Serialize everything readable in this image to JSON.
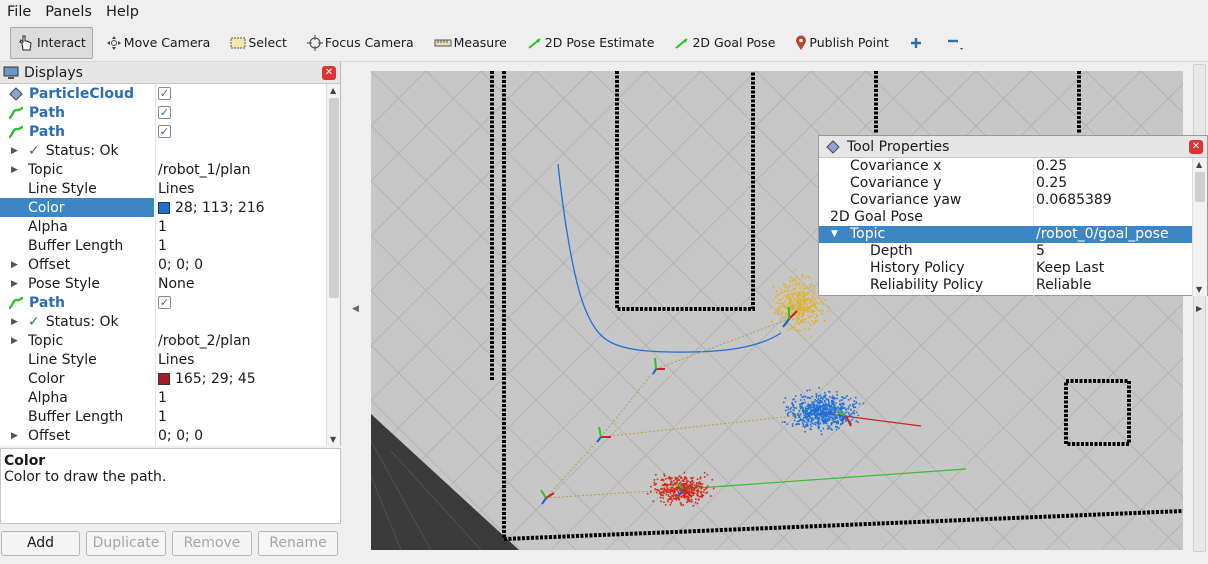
{
  "menu": [
    "File",
    "Panels",
    "Help"
  ],
  "toolbar": {
    "interact": "Interact",
    "move_camera": "Move Camera",
    "select": "Select",
    "focus_camera": "Focus Camera",
    "measure": "Measure",
    "pose_estimate": "2D Pose Estimate",
    "goal_pose": "2D Goal Pose",
    "publish_point": "Publish Point"
  },
  "displays": {
    "title": "Displays",
    "rows": [
      {
        "name": "ParticleCloud",
        "check": "✓"
      },
      {
        "name": "Path",
        "check": "✓"
      },
      {
        "name": "Path",
        "check": "✓"
      },
      {
        "name": "Status: Ok",
        "value": ""
      },
      {
        "name": "Topic",
        "value": "/robot_1/plan"
      },
      {
        "name": "Line Style",
        "value": "Lines"
      },
      {
        "name": "Color",
        "value": "28; 113; 216",
        "swatch": "#1c71d8"
      },
      {
        "name": "Alpha",
        "value": "1"
      },
      {
        "name": "Buffer Length",
        "value": "1"
      },
      {
        "name": "Offset",
        "value": "0; 0; 0"
      },
      {
        "name": "Pose Style",
        "value": "None"
      },
      {
        "name": "Path",
        "check": "✓"
      },
      {
        "name": "Status: Ok",
        "value": ""
      },
      {
        "name": "Topic",
        "value": "/robot_2/plan"
      },
      {
        "name": "Line Style",
        "value": "Lines"
      },
      {
        "name": "Color",
        "value": "165; 29; 45",
        "swatch": "#a51d2d"
      },
      {
        "name": "Alpha",
        "value": "1"
      },
      {
        "name": "Buffer Length",
        "value": "1"
      },
      {
        "name": "Offset",
        "value": "0; 0; 0"
      }
    ]
  },
  "description": {
    "title": "Color",
    "text": "Color to draw the path."
  },
  "buttons": {
    "add": "Add",
    "duplicate": "Duplicate",
    "remove": "Remove",
    "rename": "Rename"
  },
  "tool_properties": {
    "title": "Tool Properties",
    "rows": [
      {
        "name": "Covariance x",
        "value": "0.25"
      },
      {
        "name": "Covariance y",
        "value": "0.25"
      },
      {
        "name": "Covariance yaw",
        "value": "0.0685389"
      },
      {
        "name": "2D Goal Pose",
        "value": ""
      },
      {
        "name": "Topic",
        "value": "/robot_0/goal_pose"
      },
      {
        "name": "Depth",
        "value": "5"
      },
      {
        "name": "History Policy",
        "value": "Keep Last"
      },
      {
        "name": "Reliability Policy",
        "value": "Reliable"
      }
    ]
  },
  "colors": {
    "accent": "#3d86c6",
    "path_blue": "#1c71d8",
    "path_red": "#a51d2d"
  }
}
